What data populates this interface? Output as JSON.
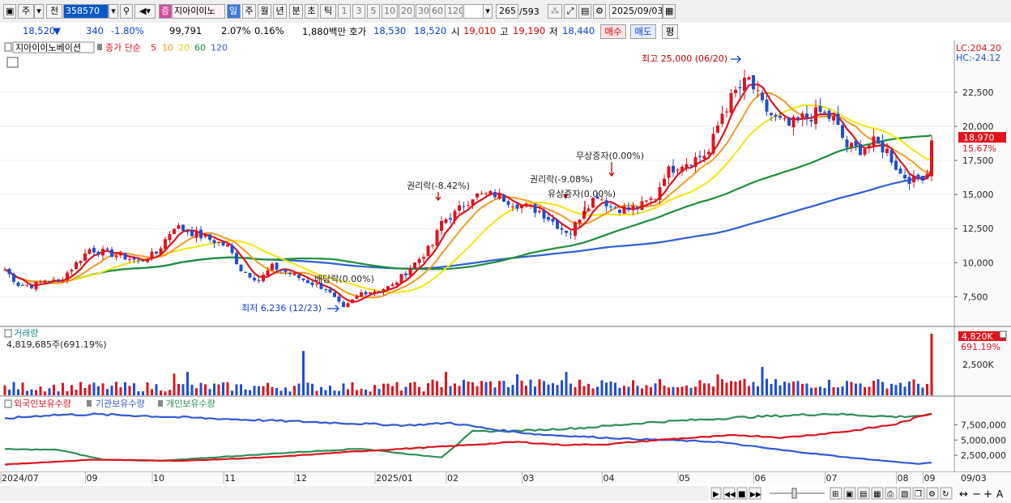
{
  "toolbar": {
    "type_label": "주",
    "all_label": "전",
    "code": "358570",
    "stock_badge": "증",
    "stock_name": "지아이이노",
    "periods": [
      "일",
      "주",
      "월",
      "년",
      "분",
      "초",
      "틱"
    ],
    "intervals": [
      "1",
      "3",
      "5",
      "10",
      "20",
      "30",
      "60",
      "120"
    ],
    "count": "265",
    "total": "/593",
    "date": "2025/09/03"
  },
  "quote": {
    "price": "18,520",
    "change": "340",
    "change_rate": "-1.80%",
    "volume": "99,791",
    "vol_rate": "2.07%",
    "turnover": "0.16%",
    "amount": "1,880백만",
    "ask_label": "호가",
    "ask": "18,530",
    "bid": "18,520",
    "open_label": "시",
    "open": "19,010",
    "high_label": "고",
    "high": "19,190",
    "low_label": "저",
    "low": "18,440",
    "buy_label": "매수",
    "sell_label": "매도",
    "eval_label": "평"
  },
  "colors": {
    "up": "#e0141e",
    "down": "#1f4fd1",
    "ma5": "#e0141e",
    "ma10": "#f39a1f",
    "ma20": "#f2e60a",
    "ma60": "#1e8f3a",
    "ma120": "#2f5fd6",
    "foreign": "#e0141e",
    "institution": "#3358d8",
    "individual": "#2f8f55"
  },
  "chart_data": [
    {
      "type": "candlestick",
      "legend": {
        "name": "지아이이노베이션",
        "series_label": "종가 단순",
        "periods": [
          "5",
          "10",
          "20",
          "60",
          "120"
        ]
      },
      "top_right": {
        "lc": "LC:204.20",
        "hc": "HC:-24.12"
      },
      "ylim": [
        5500,
        26000
      ],
      "y_ticks": [
        7500,
        10000,
        12500,
        15000,
        17500,
        20000,
        22500
      ],
      "y_tick_labels": [
        "7,500",
        "10,000",
        "12,500",
        "15,000",
        "17,500",
        "20,000",
        "22,500"
      ],
      "current_price_label": "18,970",
      "current_rate_label": "15.67%",
      "annotations": {
        "high": "최고 25,000 (06/20)",
        "low": "최저 6,236 (12/23)",
        "ex_dividend": "배당락(0.00%)",
        "rights1": "권리락(-8.42%)",
        "rights2": "권리락(-9.08%)",
        "paid_increase": "유상증자(0.00%)",
        "bonus_issue": "무상증자(0.00%)"
      },
      "x_labels": [
        "2024/07",
        "09",
        "10",
        "11",
        "12",
        "2025/01",
        "02",
        "03",
        "04",
        "05",
        "06",
        "07",
        "08",
        "09"
      ],
      "date_label": "09/03",
      "close_points": [
        [
          0,
          9500
        ],
        [
          3,
          8400
        ],
        [
          6,
          8300
        ],
        [
          9,
          8700
        ],
        [
          12,
          8600
        ],
        [
          15,
          9600
        ],
        [
          19,
          11000
        ],
        [
          23,
          10700
        ],
        [
          27,
          10400
        ],
        [
          30,
          10100
        ],
        [
          34,
          10700
        ],
        [
          38,
          12700
        ],
        [
          42,
          12200
        ],
        [
          46,
          11700
        ],
        [
          50,
          11200
        ],
        [
          53,
          9500
        ],
        [
          57,
          8700
        ],
        [
          60,
          9700
        ],
        [
          64,
          9200
        ],
        [
          68,
          8600
        ],
        [
          72,
          8100
        ],
        [
          76,
          6600
        ],
        [
          80,
          7800
        ],
        [
          84,
          8000
        ],
        [
          87,
          8300
        ],
        [
          90,
          9300
        ],
        [
          93,
          10300
        ],
        [
          96,
          11300
        ],
        [
          98,
          13000
        ],
        [
          101,
          13600
        ],
        [
          105,
          14900
        ],
        [
          110,
          15000
        ],
        [
          115,
          14300
        ],
        [
          120,
          13800
        ],
        [
          125,
          12500
        ],
        [
          127,
          12200
        ],
        [
          130,
          14000
        ],
        [
          133,
          15000
        ],
        [
          136,
          14100
        ],
        [
          140,
          13900
        ],
        [
          143,
          14200
        ],
        [
          146,
          14800
        ],
        [
          148,
          16500
        ],
        [
          151,
          17200
        ],
        [
          154,
          17500
        ],
        [
          158,
          18100
        ],
        [
          161,
          21000
        ],
        [
          164,
          22500
        ],
        [
          167,
          23400
        ],
        [
          170,
          21500
        ],
        [
          173,
          20500
        ],
        [
          176,
          20000
        ],
        [
          179,
          20600
        ],
        [
          183,
          21000
        ],
        [
          186,
          20500
        ],
        [
          189,
          18500
        ],
        [
          192,
          18300
        ],
        [
          195,
          18800
        ],
        [
          198,
          18200
        ],
        [
          201,
          16500
        ],
        [
          204,
          16000
        ],
        [
          207,
          16600
        ],
        [
          208,
          18970
        ]
      ],
      "volume": {
        "title": "거래량",
        "value_label": "4,819,685주(691.19%)",
        "badge": "4,820K",
        "badge_rate": "691.19%",
        "tick_label": "2,500K",
        "max": 4820000,
        "highlight": [
          [
            38,
            0.35
          ],
          [
            41,
            0.38
          ],
          [
            67,
            0.72
          ],
          [
            99,
            0.38
          ],
          [
            115,
            0.34
          ],
          [
            126,
            0.38
          ],
          [
            160,
            0.34
          ],
          [
            170,
            0.46
          ],
          [
            208,
            1.0
          ]
        ]
      },
      "holdings": {
        "title_foreign": "외국인보유수량",
        "title_institution": "기관보유수량",
        "title_individual": "개인보유수량",
        "ylim": [
          0,
          11000000
        ],
        "y_ticks": [
          2500000,
          5000000,
          7500000
        ],
        "y_tick_labels": [
          "2,500,000",
          "5,000,000",
          "7,500,000"
        ],
        "foreign": [
          [
            0,
            1000000
          ],
          [
            20,
            1800000
          ],
          [
            40,
            1600000
          ],
          [
            60,
            2200000
          ],
          [
            80,
            3200000
          ],
          [
            100,
            4000000
          ],
          [
            115,
            4700000
          ],
          [
            125,
            4200000
          ],
          [
            135,
            4300000
          ],
          [
            150,
            5200000
          ],
          [
            165,
            5800000
          ],
          [
            175,
            5400000
          ],
          [
            190,
            6500000
          ],
          [
            200,
            7600000
          ],
          [
            208,
            9400000
          ]
        ],
        "institution": [
          [
            0,
            8500000
          ],
          [
            10,
            9100000
          ],
          [
            20,
            9200000
          ],
          [
            30,
            9000000
          ],
          [
            40,
            8700000
          ],
          [
            55,
            8300000
          ],
          [
            75,
            7800000
          ],
          [
            90,
            7400000
          ],
          [
            100,
            7800000
          ],
          [
            110,
            6700000
          ],
          [
            120,
            5900000
          ],
          [
            140,
            5200000
          ],
          [
            160,
            4700000
          ],
          [
            175,
            3300000
          ],
          [
            190,
            2100000
          ],
          [
            205,
            1100000
          ],
          [
            208,
            1300000
          ]
        ],
        "individual": [
          [
            0,
            3500000
          ],
          [
            12,
            3400000
          ],
          [
            22,
            1800000
          ],
          [
            35,
            1600000
          ],
          [
            50,
            2300000
          ],
          [
            65,
            3000000
          ],
          [
            80,
            3600000
          ],
          [
            93,
            2500000
          ],
          [
            98,
            2200000
          ],
          [
            105,
            6400000
          ],
          [
            115,
            6500000
          ],
          [
            130,
            7000000
          ],
          [
            145,
            7900000
          ],
          [
            165,
            8700000
          ],
          [
            185,
            9300000
          ],
          [
            200,
            8800000
          ],
          [
            208,
            9100000
          ]
        ]
      }
    }
  ]
}
